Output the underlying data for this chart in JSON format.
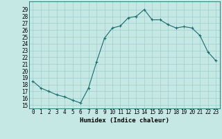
{
  "x": [
    0,
    1,
    2,
    3,
    4,
    5,
    6,
    7,
    8,
    9,
    10,
    11,
    12,
    13,
    14,
    15,
    16,
    17,
    18,
    19,
    20,
    21,
    22,
    23
  ],
  "y": [
    18.5,
    17.5,
    17.0,
    16.5,
    16.2,
    15.7,
    15.3,
    17.5,
    21.3,
    24.8,
    26.3,
    26.6,
    27.8,
    28.0,
    29.0,
    27.5,
    27.5,
    26.8,
    26.3,
    26.5,
    26.3,
    25.2,
    22.8,
    21.5
  ],
  "line_color": "#1a6b6b",
  "marker": "+",
  "bg_color": "#c5e8e5",
  "grid_color": "#9ecece",
  "xlabel": "Humidex (Indice chaleur)",
  "ylabel_ticks": [
    15,
    16,
    17,
    18,
    19,
    20,
    21,
    22,
    23,
    24,
    25,
    26,
    27,
    28,
    29
  ],
  "xlim": [
    -0.5,
    23.5
  ],
  "ylim": [
    14.5,
    30.2
  ],
  "title": ""
}
